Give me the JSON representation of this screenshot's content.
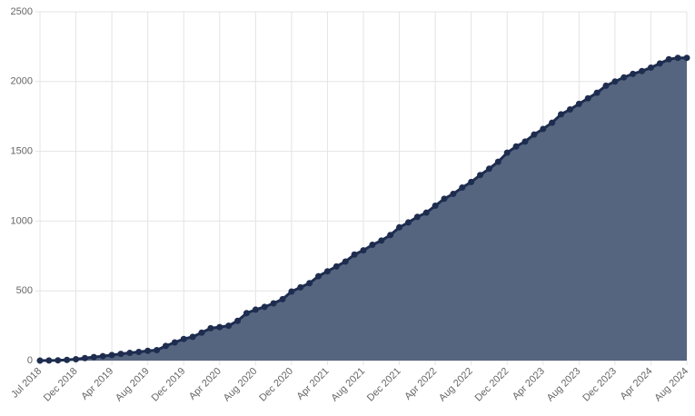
{
  "chart_data": {
    "type": "area",
    "categories": [
      "Jul 2018",
      null,
      null,
      null,
      "Dec 2018",
      null,
      null,
      null,
      "Apr 2019",
      null,
      null,
      null,
      "Aug 2019",
      null,
      null,
      null,
      "Dec 2019",
      null,
      null,
      null,
      "Apr 2020",
      null,
      null,
      null,
      "Aug 2020",
      null,
      null,
      null,
      "Dec 2020",
      null,
      null,
      null,
      "Apr 2021",
      null,
      null,
      null,
      "Aug 2021",
      null,
      null,
      null,
      "Dec 2021",
      null,
      null,
      null,
      "Apr 2022",
      null,
      null,
      null,
      "Aug 2022",
      null,
      null,
      null,
      "Dec 2022",
      null,
      null,
      null,
      "Apr 2023",
      null,
      null,
      null,
      "Aug 2023",
      null,
      null,
      null,
      "Dec 2023",
      null,
      null,
      null,
      "Apr 2024",
      null,
      null,
      null,
      "Aug 2024"
    ],
    "values": [
      0,
      1,
      2,
      5,
      10,
      18,
      25,
      32,
      40,
      48,
      55,
      62,
      70,
      75,
      105,
      130,
      155,
      170,
      200,
      232,
      240,
      250,
      285,
      340,
      365,
      385,
      410,
      440,
      495,
      525,
      555,
      605,
      640,
      675,
      710,
      760,
      790,
      830,
      860,
      900,
      955,
      990,
      1030,
      1060,
      1110,
      1160,
      1195,
      1240,
      1280,
      1330,
      1375,
      1425,
      1490,
      1535,
      1570,
      1620,
      1660,
      1705,
      1765,
      1800,
      1840,
      1880,
      1920,
      1970,
      2000,
      2030,
      2055,
      2075,
      2100,
      2130,
      2160,
      2170,
      2170
    ],
    "color": "#1e2d4f",
    "fill": "#56657f",
    "ylim": [
      0,
      2500
    ],
    "yticks": [
      0,
      500,
      1000,
      1500,
      2000,
      2500
    ],
    "grid": true
  }
}
